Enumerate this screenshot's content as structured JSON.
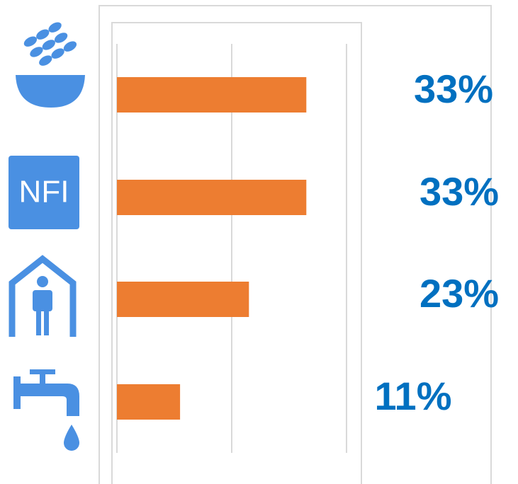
{
  "chart_data": {
    "type": "barh",
    "categories": [
      null,
      null,
      null,
      null
    ],
    "values": [
      33,
      33,
      23,
      11
    ],
    "value_labels": [
      "33%",
      "33%",
      "23%",
      "11%"
    ],
    "color": "#ed7d31",
    "label_color": "#0070c0",
    "annotations": [
      "NFI"
    ],
    "xlim": [
      0,
      40
    ],
    "xticks": [
      0,
      20,
      40
    ],
    "grid": true
  }
}
